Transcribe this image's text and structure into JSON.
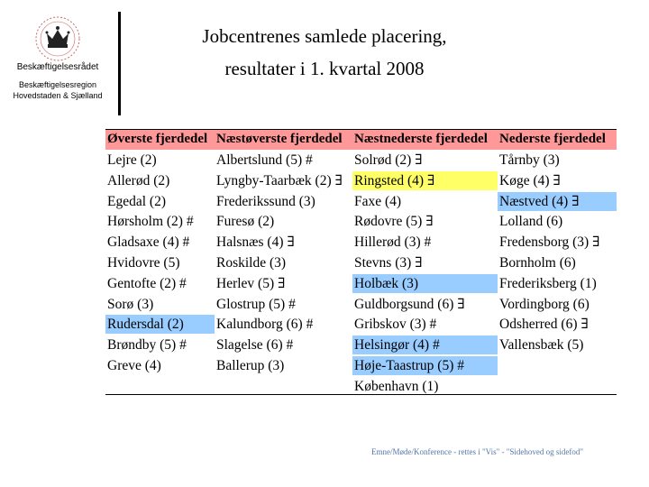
{
  "header": {
    "org_line1": "Beskæftigelsesrådet",
    "org_line2a": "Beskæftigelsesregion",
    "org_line2b": "Hovedstaden & Sjælland"
  },
  "title": {
    "line1": "Jobcentrenes samlede placering,",
    "line2": "resultater i 1. kvartal 2008"
  },
  "table": {
    "columns": [
      "Øverste fjerdedel",
      "Næstøverste fjerdedel",
      "Næstnederste fjerdedel",
      "Nederste fjerdedel"
    ],
    "rows": [
      [
        {
          "t": "Lejre (2)",
          "h": ""
        },
        {
          "t": "Albertslund (5) #",
          "h": ""
        },
        {
          "t": "Solrød (2) ∃",
          "h": ""
        },
        {
          "t": "Tårnby (3)",
          "h": ""
        }
      ],
      [
        {
          "t": "Allerød (2)",
          "h": ""
        },
        {
          "t": "Lyngby-Taarbæk (2) ∃",
          "h": ""
        },
        {
          "t": "Ringsted (4) ∃",
          "h": "yellow"
        },
        {
          "t": "Køge (4) ∃",
          "h": ""
        }
      ],
      [
        {
          "t": "Egedal (2)",
          "h": ""
        },
        {
          "t": "Frederikssund (3)",
          "h": ""
        },
        {
          "t": "Faxe (4)",
          "h": ""
        },
        {
          "t": "Næstved (4) ∃",
          "h": "blue"
        }
      ],
      [
        {
          "t": "Hørsholm (2) #",
          "h": ""
        },
        {
          "t": "Furesø (2)",
          "h": ""
        },
        {
          "t": "Rødovre (5) ∃",
          "h": ""
        },
        {
          "t": "Lolland (6)",
          "h": ""
        }
      ],
      [
        {
          "t": "Gladsaxe (4) #",
          "h": ""
        },
        {
          "t": "Halsnæs (4) ∃",
          "h": ""
        },
        {
          "t": "Hillerød (3) #",
          "h": ""
        },
        {
          "t": "Fredensborg (3) ∃",
          "h": ""
        }
      ],
      [
        {
          "t": "Hvidovre (5)",
          "h": ""
        },
        {
          "t": "Roskilde (3)",
          "h": ""
        },
        {
          "t": "Stevns (3) ∃",
          "h": ""
        },
        {
          "t": "Bornholm (6)",
          "h": ""
        }
      ],
      [
        {
          "t": "Gentofte (2) #",
          "h": ""
        },
        {
          "t": "Herlev (5) ∃",
          "h": ""
        },
        {
          "t": "Holbæk (3)",
          "h": "blue"
        },
        {
          "t": "Frederiksberg (1)",
          "h": ""
        }
      ],
      [
        {
          "t": "Sorø (3)",
          "h": ""
        },
        {
          "t": "Glostrup (5) #",
          "h": ""
        },
        {
          "t": "Guldborgsund (6) ∃",
          "h": ""
        },
        {
          "t": "Vordingborg (6)",
          "h": ""
        }
      ],
      [
        {
          "t": "Rudersdal (2)",
          "h": "blue"
        },
        {
          "t": "Kalundborg (6) #",
          "h": ""
        },
        {
          "t": "Gribskov (3) #",
          "h": ""
        },
        {
          "t": "Odsherred (6) ∃",
          "h": ""
        }
      ],
      [
        {
          "t": "Brøndby (5) #",
          "h": ""
        },
        {
          "t": "Slagelse (6) #",
          "h": ""
        },
        {
          "t": "Helsingør (4) #",
          "h": "blue"
        },
        {
          "t": "Vallensbæk (5)",
          "h": ""
        }
      ],
      [
        {
          "t": "Greve (4)",
          "h": ""
        },
        {
          "t": "Ballerup (3)",
          "h": ""
        },
        {
          "t": "Høje-Taastrup (5) #",
          "h": "blue"
        },
        {
          "t": "",
          "h": ""
        }
      ],
      [
        {
          "t": "",
          "h": ""
        },
        {
          "t": "",
          "h": ""
        },
        {
          "t": "København (1)",
          "h": ""
        },
        {
          "t": "",
          "h": ""
        }
      ]
    ]
  },
  "footer": "Emne/Møde/Konference - rettes i \"Vis\" - \"Sidehoved og sidefod\""
}
